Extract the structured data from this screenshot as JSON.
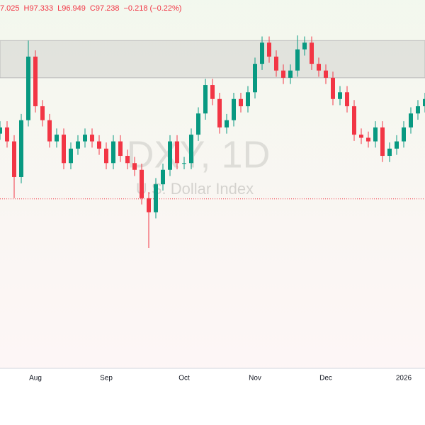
{
  "chart_data": {
    "type": "candlestick",
    "ohlc_readout": [
      "7.025",
      "H97.333",
      "L96.949",
      "C97.238",
      "−0.218 (−0.22%)"
    ],
    "watermark": [
      "DXY, 1D",
      "U.S. Dollar Index"
    ],
    "categories": [
      null,
      null,
      null,
      null,
      null,
      "Aug",
      null,
      null,
      null,
      null,
      null,
      null,
      null,
      null,
      null,
      "Sep",
      null,
      null,
      null,
      null,
      null,
      null,
      null,
      null,
      null,
      null,
      "Oct",
      null,
      null,
      null,
      null,
      null,
      null,
      null,
      null,
      null,
      "Nov",
      null,
      null,
      null,
      null,
      null,
      null,
      null,
      null,
      null,
      "Dec",
      null,
      null,
      null,
      null,
      null,
      null,
      null,
      null,
      null,
      null,
      "2026",
      null,
      null,
      null
    ],
    "open": [
      98.5,
      98.62,
      98.35,
      97.66,
      98.76,
      99.99,
      99.03,
      98.76,
      98.35,
      98.48,
      97.93,
      98.21,
      98.35,
      98.48,
      98.35,
      98.21,
      97.93,
      98.35,
      98.07,
      97.93,
      97.8,
      97.25,
      96.98,
      97.52,
      97.8,
      98.35,
      97.93,
      97.93,
      98.48,
      98.89,
      99.44,
      99.17,
      98.62,
      98.76,
      99.17,
      99.03,
      99.3,
      99.85,
      100.26,
      99.99,
      99.72,
      99.58,
      99.72,
      100.13,
      100.26,
      99.85,
      99.72,
      99.58,
      99.17,
      99.3,
      99.03,
      98.48,
      98.42,
      98.35,
      98.62,
      98.07,
      98.21,
      98.35,
      98.62,
      98.89,
      99.03
    ],
    "high": [
      98.74,
      98.74,
      98.47,
      98.88,
      100.3,
      100.11,
      99.15,
      98.88,
      98.6,
      98.6,
      98.33,
      98.47,
      98.6,
      98.6,
      98.47,
      98.33,
      98.47,
      98.47,
      98.19,
      98.05,
      97.92,
      97.37,
      97.64,
      97.92,
      98.47,
      98.47,
      98.05,
      98.6,
      99.01,
      99.56,
      99.56,
      99.29,
      98.88,
      99.29,
      99.29,
      99.42,
      99.97,
      100.38,
      100.38,
      100.11,
      99.84,
      99.84,
      100.4,
      100.38,
      100.38,
      99.97,
      99.84,
      99.7,
      99.42,
      99.42,
      99.15,
      98.6,
      98.54,
      98.74,
      98.74,
      98.33,
      98.47,
      98.74,
      99.01,
      99.15,
      99.29
    ],
    "low": [
      98.38,
      98.23,
      97.25,
      97.54,
      98.64,
      98.91,
      98.64,
      98.23,
      98.23,
      97.81,
      97.81,
      98.09,
      98.23,
      98.23,
      98.09,
      97.81,
      97.81,
      97.95,
      97.81,
      97.68,
      97.13,
      96.29,
      96.86,
      97.4,
      97.68,
      97.81,
      97.81,
      97.81,
      98.36,
      98.77,
      99.05,
      98.5,
      98.5,
      98.64,
      98.91,
      98.91,
      99.18,
      99.73,
      99.87,
      99.6,
      99.46,
      99.46,
      99.6,
      100.01,
      99.73,
      99.6,
      99.46,
      99.05,
      99.05,
      98.91,
      98.36,
      98.3,
      98.23,
      98.23,
      97.95,
      97.95,
      98.09,
      98.23,
      98.5,
      98.77,
      98.91
    ],
    "close": [
      98.62,
      98.35,
      97.66,
      98.76,
      99.99,
      99.03,
      98.76,
      98.35,
      98.48,
      97.93,
      98.21,
      98.35,
      98.48,
      98.35,
      98.21,
      97.93,
      98.35,
      98.07,
      97.93,
      97.8,
      97.25,
      96.98,
      97.52,
      97.8,
      98.35,
      97.93,
      97.93,
      98.48,
      98.89,
      99.44,
      99.17,
      98.62,
      98.76,
      99.17,
      99.03,
      99.3,
      99.85,
      100.26,
      99.99,
      99.72,
      99.58,
      99.72,
      100.13,
      100.26,
      99.85,
      99.72,
      99.58,
      99.17,
      99.3,
      99.03,
      98.48,
      98.42,
      98.35,
      98.62,
      98.07,
      98.21,
      98.35,
      98.62,
      98.89,
      99.03,
      99.17
    ],
    "up_color": "#089981",
    "down_color": "#f23645",
    "zone": [
      99.58,
      100.3
    ],
    "price_line": 97.238,
    "ylim": [
      93.96,
      101.085
    ]
  }
}
